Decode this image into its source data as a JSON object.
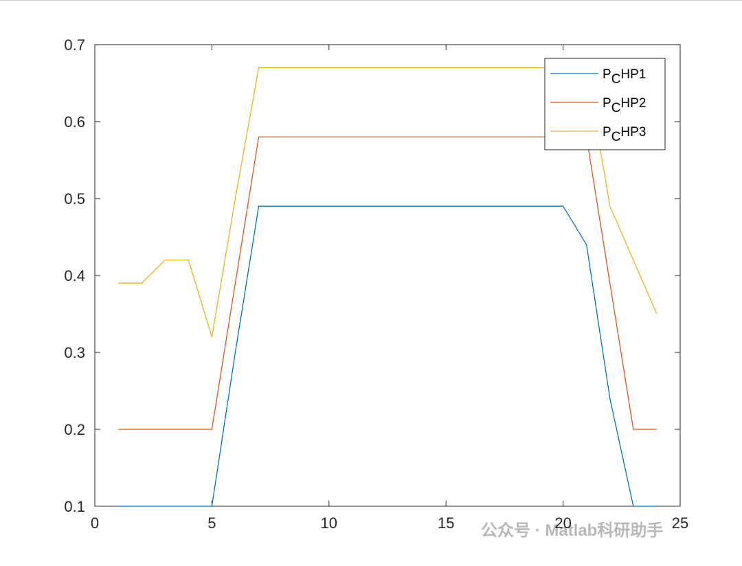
{
  "chart_data": {
    "type": "line",
    "x": [
      1,
      2,
      3,
      4,
      5,
      6,
      7,
      8,
      9,
      10,
      11,
      12,
      13,
      14,
      15,
      16,
      17,
      18,
      19,
      20,
      21,
      22,
      23,
      24
    ],
    "series": [
      {
        "name": "PCHP1",
        "color": "#0072bd",
        "values": [
          0.1,
          0.1,
          0.1,
          0.1,
          0.1,
          0.3,
          0.49,
          0.49,
          0.49,
          0.49,
          0.49,
          0.49,
          0.49,
          0.49,
          0.49,
          0.49,
          0.49,
          0.49,
          0.49,
          0.49,
          0.44,
          0.24,
          0.1,
          0.1
        ]
      },
      {
        "name": "PCHP2",
        "color": "#d95319",
        "values": [
          0.2,
          0.2,
          0.2,
          0.2,
          0.2,
          0.39,
          0.58,
          0.58,
          0.58,
          0.58,
          0.58,
          0.58,
          0.58,
          0.58,
          0.58,
          0.58,
          0.58,
          0.58,
          0.58,
          0.58,
          0.58,
          0.39,
          0.2,
          0.2
        ]
      },
      {
        "name": "PCHP3",
        "color": "#edb120",
        "values": [
          0.39,
          0.39,
          0.42,
          0.42,
          0.32,
          0.5,
          0.67,
          0.67,
          0.67,
          0.67,
          0.67,
          0.67,
          0.67,
          0.67,
          0.67,
          0.67,
          0.67,
          0.67,
          0.67,
          0.67,
          0.67,
          0.49,
          0.42,
          0.35
        ]
      }
    ],
    "xlim": [
      0,
      25
    ],
    "xticks": [
      0,
      5,
      10,
      15,
      20,
      25
    ],
    "ylim": [
      0.1,
      0.7
    ],
    "yticks": [
      0.1,
      0.2,
      0.3,
      0.4,
      0.5,
      0.6,
      0.7
    ],
    "grid": false,
    "legend_position": "top-right"
  },
  "watermark": "公众号 · Matlab科研助手"
}
